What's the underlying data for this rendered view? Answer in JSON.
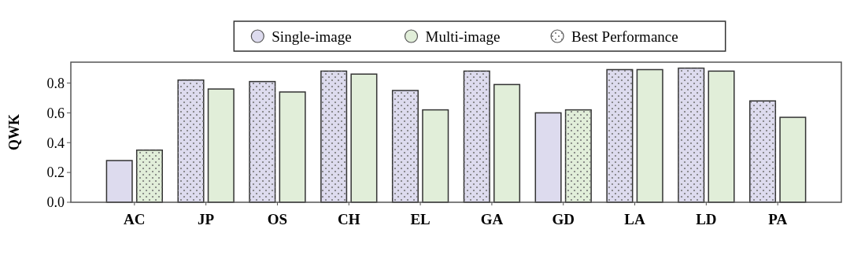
{
  "chart_data": {
    "type": "bar",
    "ylabel": "QWK",
    "categories": [
      "AC",
      "JP",
      "OS",
      "CH",
      "EL",
      "GA",
      "GD",
      "LA",
      "LD",
      "PA"
    ],
    "series": [
      {
        "name": "Single-image",
        "color": "#dddbee",
        "values": [
          0.28,
          0.82,
          0.81,
          0.88,
          0.75,
          0.88,
          0.6,
          0.89,
          0.9,
          0.68
        ]
      },
      {
        "name": "Multi-image",
        "color": "#e1eed9",
        "values": [
          0.35,
          0.76,
          0.74,
          0.86,
          0.62,
          0.79,
          0.62,
          0.89,
          0.88,
          0.57
        ]
      },
      {
        "name": "Best Performance",
        "color": "#ffffff",
        "values": [
          null,
          null,
          null,
          null,
          null,
          null,
          null,
          null,
          null,
          null
        ]
      }
    ],
    "ylim": [
      0,
      0.94
    ],
    "yticks": [
      {
        "value": 0,
        "label": "0.0"
      },
      {
        "value": 0.2,
        "label": "0.2"
      },
      {
        "value": 0.4,
        "label": "0.4"
      },
      {
        "value": 0.6,
        "label": "0.6"
      },
      {
        "value": 0.8,
        "label": "0.8"
      }
    ],
    "grid": false,
    "legend": "top"
  }
}
